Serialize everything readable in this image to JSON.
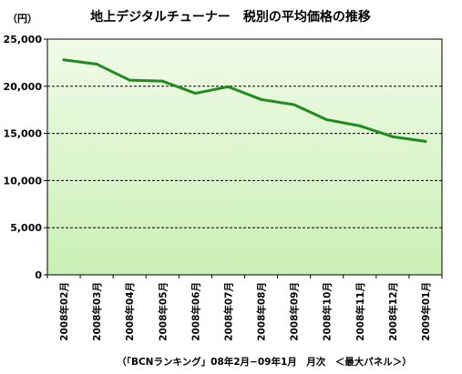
{
  "chart_data": {
    "type": "line",
    "title": "地上デジタルチューナー　税別の平均価格の推移",
    "ylabel": "（円）",
    "xlabel": "",
    "source": "（「BCNランキング」08年2月−09年1月　月次　＜最大パネル＞）",
    "ylim": [
      0,
      25000
    ],
    "yticks": [
      0,
      5000,
      10000,
      15000,
      20000,
      25000
    ],
    "ytick_labels": [
      "0",
      "5,000",
      "10,000",
      "15,000",
      "20,000",
      "25,000"
    ],
    "grid": true,
    "categories": [
      "2008年02月",
      "2008年03月",
      "2008年04月",
      "2008年05月",
      "2008年06月",
      "2008年07月",
      "2008年08月",
      "2008年09月",
      "2008年10月",
      "2008年11月",
      "2008年12月",
      "2009年01月"
    ],
    "series": [
      {
        "values": [
          22800,
          22350,
          20650,
          20550,
          19250,
          19950,
          18600,
          18050,
          16450,
          15800,
          14650,
          14150
        ],
        "color": "#218a21"
      }
    ],
    "plot_background": [
      "#f0fbe8",
      "#c9f0b4"
    ]
  }
}
